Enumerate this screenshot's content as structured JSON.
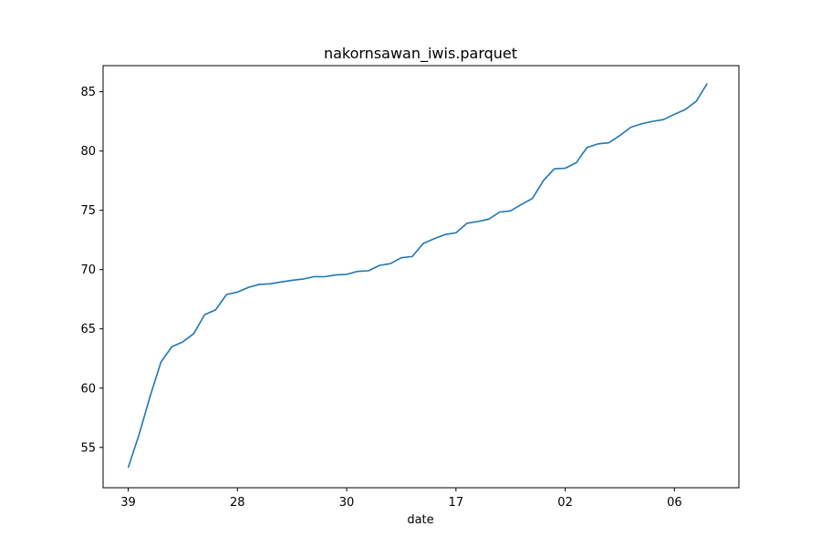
{
  "chart_data": {
    "type": "line",
    "title": "nakornsawan_iwis.parquet",
    "xlabel": "date",
    "ylabel": "",
    "x_tick_labels": [
      "39",
      "28",
      "30",
      "17",
      "02",
      "06"
    ],
    "x_tick_positions": [
      0,
      10,
      20,
      30,
      40,
      50
    ],
    "y_ticks": [
      55,
      60,
      65,
      70,
      75,
      80,
      85
    ],
    "ylim": [
      51.6,
      87.2
    ],
    "xlim": [
      -2.3,
      55.9
    ],
    "grid": false,
    "legend": "none",
    "line_color": "#1f77b4",
    "series": [
      {
        "x": [
          0,
          1,
          2,
          3,
          4,
          5,
          6,
          7,
          8,
          9,
          10,
          11,
          12,
          13,
          14,
          15,
          16,
          17,
          18,
          19,
          20,
          21,
          22,
          23,
          24,
          25,
          26,
          27,
          28,
          29,
          30,
          31,
          32,
          33,
          34,
          35,
          36,
          37,
          38,
          39,
          40,
          41,
          42,
          43,
          44,
          45,
          46,
          47,
          48,
          49,
          50,
          51,
          52,
          53
        ],
        "values": [
          53.3,
          56.1,
          59.3,
          62.2,
          63.5,
          63.9,
          64.6,
          66.2,
          66.6,
          67.9,
          68.1,
          68.5,
          68.75,
          68.8,
          68.95,
          69.1,
          69.2,
          69.4,
          69.4,
          69.55,
          69.6,
          69.85,
          69.9,
          70.35,
          70.5,
          71.0,
          71.1,
          72.2,
          72.6,
          72.95,
          73.1,
          73.9,
          74.05,
          74.25,
          74.85,
          74.95,
          75.5,
          76.0,
          77.5,
          78.5,
          78.55,
          79.0,
          80.3,
          80.6,
          80.7,
          81.3,
          82.0,
          82.3,
          82.5,
          82.65,
          83.1,
          83.5,
          84.2,
          85.7
        ]
      }
    ]
  }
}
